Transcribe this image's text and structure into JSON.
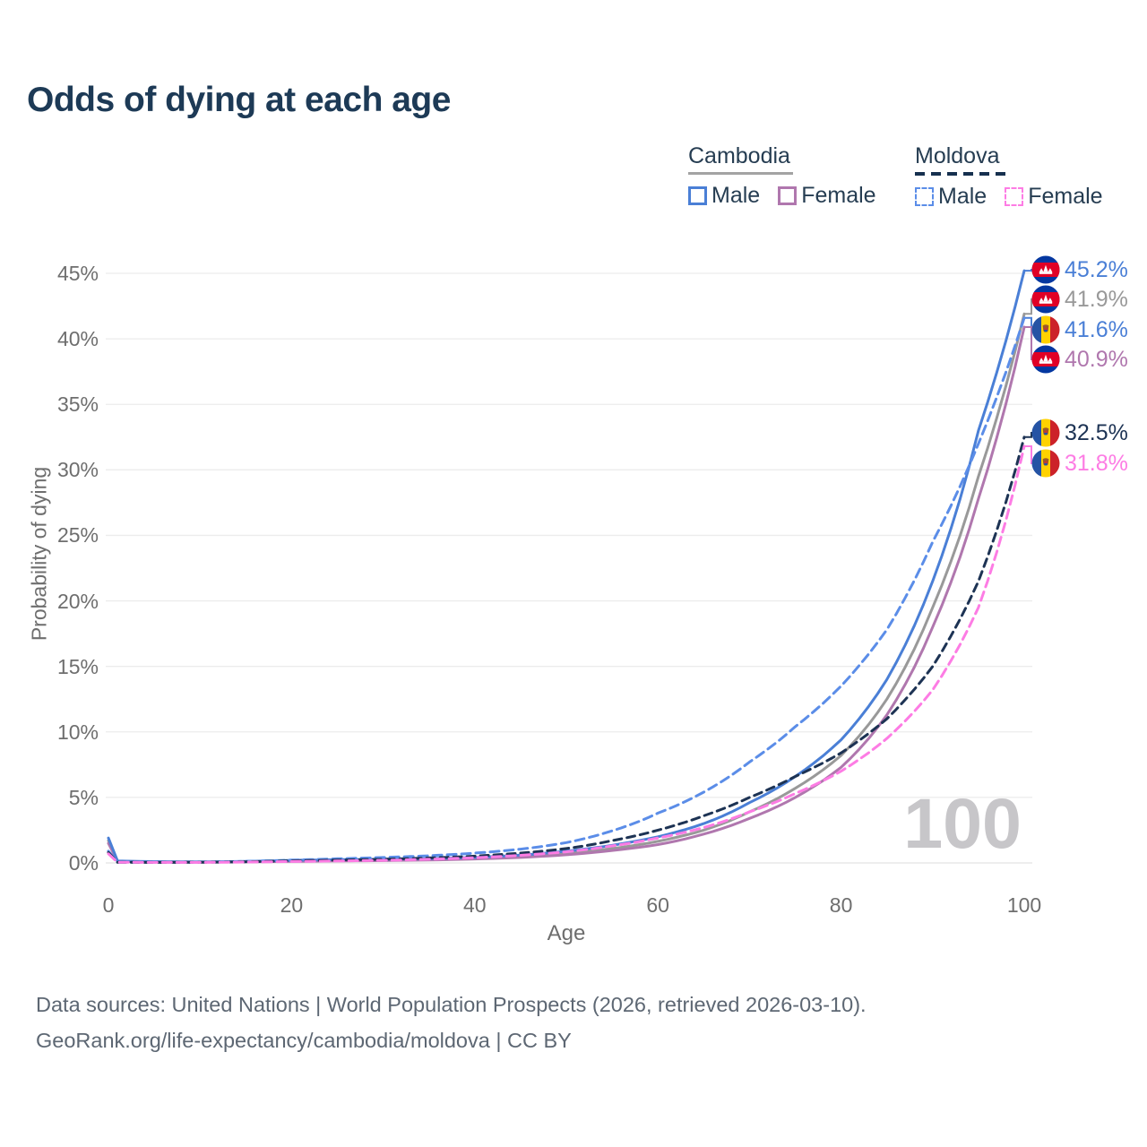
{
  "title": "Odds of dying at each age",
  "watermark": "100",
  "legend": {
    "groups": [
      {
        "country": "Cambodia",
        "line_style": "solid",
        "underline_color": "#a3a3a3",
        "items": [
          {
            "label": "Male",
            "color": "#4a7fd6"
          },
          {
            "label": "Female",
            "color": "#b077ae"
          }
        ]
      },
      {
        "country": "Moldova",
        "line_style": "dashed",
        "underline_color": "#16304f",
        "items": [
          {
            "label": "Male",
            "color": "#5b8de8"
          },
          {
            "label": "Female",
            "color": "#fd7ce4"
          }
        ]
      }
    ]
  },
  "y_axis": {
    "title": "Probability of dying",
    "ticks": [
      "45%",
      "40%",
      "35%",
      "30%",
      "25%",
      "20%",
      "15%",
      "10%",
      "5%",
      "0%"
    ],
    "tick_values": [
      45,
      40,
      35,
      30,
      25,
      20,
      15,
      10,
      5,
      0
    ]
  },
  "x_axis": {
    "title": "Age",
    "ticks": [
      "0",
      "20",
      "40",
      "60",
      "80",
      "100"
    ],
    "tick_values": [
      0,
      20,
      40,
      60,
      80,
      100
    ]
  },
  "chart_data": {
    "type": "line",
    "title": "Odds of dying at each age",
    "xlabel": "Age",
    "ylabel": "Probability of dying",
    "xlim": [
      0,
      100
    ],
    "ylim": [
      0,
      45.7
    ],
    "grid": true,
    "x": [
      0,
      1,
      5,
      10,
      15,
      20,
      25,
      30,
      35,
      40,
      45,
      50,
      55,
      60,
      65,
      70,
      75,
      80,
      85,
      90,
      95,
      100
    ],
    "series": [
      {
        "name": "Cambodia Total",
        "country": "Cambodia",
        "group": "Total",
        "color": "#999999",
        "dash": null,
        "end_value_pct": 41.9,
        "values": [
          1.7,
          0.13,
          0.09,
          0.07,
          0.1,
          0.16,
          0.2,
          0.23,
          0.27,
          0.35,
          0.5,
          0.75,
          1.1,
          1.65,
          2.5,
          3.9,
          5.7,
          8.2,
          12.5,
          19.5,
          29.5,
          41.9
        ]
      },
      {
        "name": "Cambodia Female",
        "country": "Cambodia",
        "group": "Female",
        "color": "#b077ae",
        "dash": null,
        "end_value_pct": 40.9,
        "values": [
          1.5,
          0.12,
          0.08,
          0.06,
          0.08,
          0.12,
          0.15,
          0.18,
          0.22,
          0.3,
          0.42,
          0.62,
          0.95,
          1.4,
          2.2,
          3.4,
          5.0,
          7.3,
          11.3,
          18.0,
          27.8,
          40.9
        ]
      },
      {
        "name": "Cambodia Male",
        "country": "Cambodia",
        "group": "Male",
        "color": "#4a7fd6",
        "dash": null,
        "end_value_pct": 45.2,
        "values": [
          1.9,
          0.15,
          0.1,
          0.08,
          0.12,
          0.2,
          0.25,
          0.28,
          0.33,
          0.42,
          0.6,
          0.9,
          1.35,
          2.0,
          3.0,
          4.6,
          6.6,
          9.4,
          14.0,
          21.5,
          33.0,
          45.2
        ]
      },
      {
        "name": "Moldova Male",
        "country": "Moldova",
        "group": "Male",
        "color": "#5b8de8",
        "dash": "10 6",
        "end_value_pct": 41.6,
        "values": [
          0.9,
          0.06,
          0.05,
          0.06,
          0.12,
          0.22,
          0.32,
          0.42,
          0.55,
          0.75,
          1.05,
          1.55,
          2.45,
          3.8,
          5.4,
          7.7,
          10.4,
          13.5,
          17.8,
          24.5,
          32.0,
          41.6
        ]
      },
      {
        "name": "Moldova Total",
        "country": "Moldova",
        "group": "Total",
        "color": "#1d3354",
        "dash": "9 6",
        "end_value_pct": 32.5,
        "values": [
          0.8,
          0.05,
          0.04,
          0.05,
          0.09,
          0.16,
          0.22,
          0.28,
          0.38,
          0.52,
          0.75,
          1.1,
          1.7,
          2.5,
          3.6,
          5.0,
          6.6,
          8.4,
          11.0,
          15.0,
          21.5,
          32.5
        ]
      },
      {
        "name": "Moldova Female",
        "country": "Moldova",
        "group": "Female",
        "color": "#fd7ce4",
        "dash": "10 6",
        "end_value_pct": 31.8,
        "values": [
          0.7,
          0.05,
          0.04,
          0.04,
          0.07,
          0.11,
          0.15,
          0.2,
          0.28,
          0.4,
          0.58,
          0.85,
          1.3,
          1.9,
          2.7,
          3.9,
          5.3,
          7.0,
          9.5,
          13.2,
          19.5,
          31.8
        ]
      }
    ]
  },
  "end_labels": [
    {
      "text": "45.2%",
      "value": 45.2,
      "flag": "cambodia",
      "series": "Cambodia Male",
      "color": "#4a7fd6"
    },
    {
      "text": "41.9%",
      "value": 41.9,
      "flag": "cambodia",
      "series": "Cambodia Total",
      "color": "#999999"
    },
    {
      "text": "41.6%",
      "value": 41.6,
      "flag": "moldova",
      "series": "Moldova Male",
      "color": "#4a7fd6"
    },
    {
      "text": "40.9%",
      "value": 40.9,
      "flag": "cambodia",
      "series": "Cambodia Female",
      "color": "#b077ae"
    },
    {
      "text": "32.5%",
      "value": 32.5,
      "flag": "moldova",
      "series": "Moldova Total",
      "color": "#1d3354"
    },
    {
      "text": "31.8%",
      "value": 31.8,
      "flag": "moldova",
      "series": "Moldova Female",
      "color": "#fd7ce4"
    }
  ],
  "footer": {
    "line1": "Data sources: United Nations | World Population Prospects (2026, retrieved 2026-03-10).",
    "line2": "GeoRank.org/life-expectancy/cambodia/moldova | CC BY"
  }
}
